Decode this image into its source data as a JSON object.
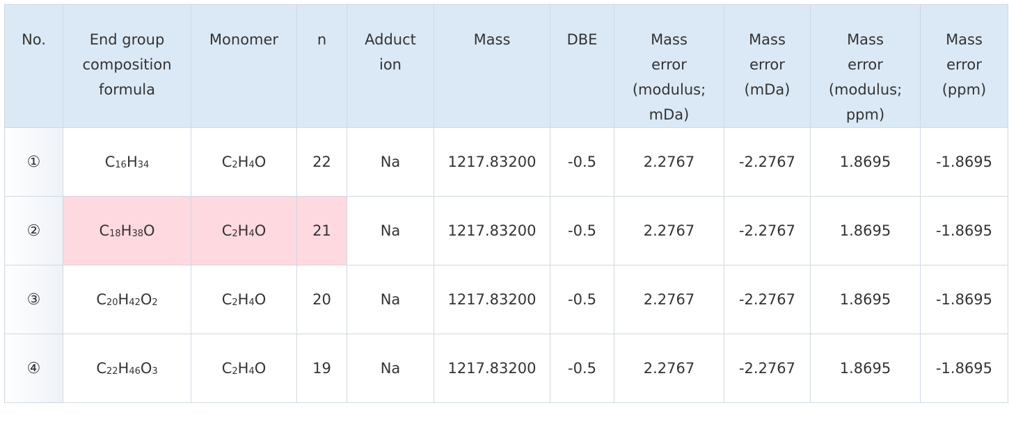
{
  "table": {
    "headers": [
      "No.",
      "End group\ncomposition\nformula",
      "Monomer",
      "n",
      "Adduct\nion",
      "Mass",
      "DBE",
      "Mass\nerror\n(modulus;\nmDa)",
      "Mass\nerror\n(mDa)",
      "Mass\nerror\n(modulus;\nppm)",
      "Mass\nerror\n(ppm)"
    ],
    "rows": [
      {
        "no": "①",
        "end_group": [
          [
            "C",
            "16"
          ],
          [
            "H",
            "34"
          ]
        ],
        "monomer": [
          [
            "C",
            "2"
          ],
          [
            "H",
            "4"
          ],
          [
            "O",
            ""
          ]
        ],
        "n": "22",
        "adduct": "Na",
        "mass": "1217.83200",
        "dbe": "-0.5",
        "err_mod_mda": "2.2767",
        "err_mda": "-2.2767",
        "err_mod_ppm": "1.8695",
        "err_ppm": "-1.8695",
        "highlight": false
      },
      {
        "no": "②",
        "end_group": [
          [
            "C",
            "18"
          ],
          [
            "H",
            "38"
          ],
          [
            "O",
            ""
          ]
        ],
        "monomer": [
          [
            "C",
            "2"
          ],
          [
            "H",
            "4"
          ],
          [
            "O",
            ""
          ]
        ],
        "n": "21",
        "adduct": "Na",
        "mass": "1217.83200",
        "dbe": "-0.5",
        "err_mod_mda": "2.2767",
        "err_mda": "-2.2767",
        "err_mod_ppm": "1.8695",
        "err_ppm": "-1.8695",
        "highlight": true
      },
      {
        "no": "③",
        "end_group": [
          [
            "C",
            "20"
          ],
          [
            "H",
            "42"
          ],
          [
            "O",
            "2"
          ]
        ],
        "monomer": [
          [
            "C",
            "2"
          ],
          [
            "H",
            "4"
          ],
          [
            "O",
            ""
          ]
        ],
        "n": "20",
        "adduct": "Na",
        "mass": "1217.83200",
        "dbe": "-0.5",
        "err_mod_mda": "2.2767",
        "err_mda": "-2.2767",
        "err_mod_ppm": "1.8695",
        "err_ppm": "-1.8695",
        "highlight": false
      },
      {
        "no": "④",
        "end_group": [
          [
            "C",
            "22"
          ],
          [
            "H",
            "46"
          ],
          [
            "O",
            "3"
          ]
        ],
        "monomer": [
          [
            "C",
            "2"
          ],
          [
            "H",
            "4"
          ],
          [
            "O",
            ""
          ]
        ],
        "n": "19",
        "adduct": "Na",
        "mass": "1217.83200",
        "dbe": "-0.5",
        "err_mod_mda": "2.2767",
        "err_mda": "-2.2767",
        "err_mod_ppm": "1.8695",
        "err_ppm": "-1.8695",
        "highlight": false
      }
    ]
  },
  "colors": {
    "header_bg": "#dbe9f6",
    "highlight_bg": "#ffd9e0",
    "border": "#cfd8e3"
  }
}
